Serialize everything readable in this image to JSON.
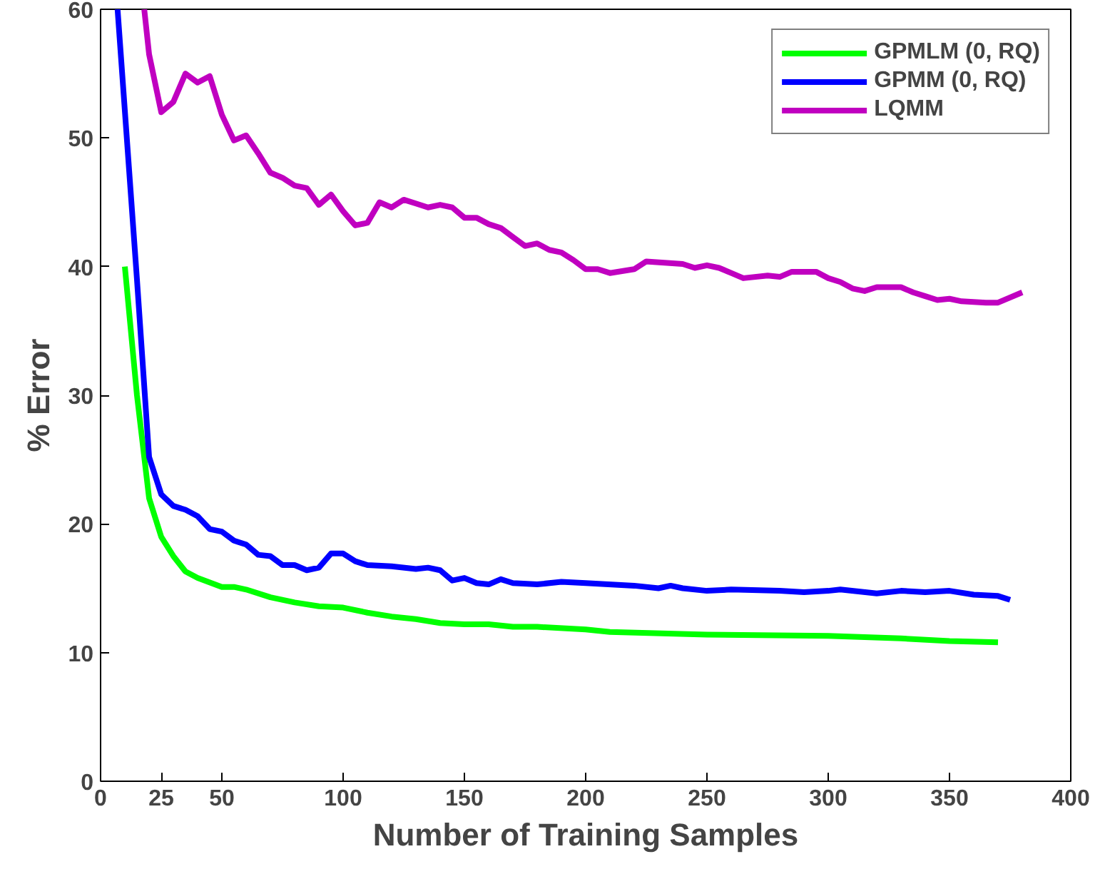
{
  "chart_data": {
    "type": "line",
    "xlabel": "Number of Training Samples",
    "ylabel": "% Error",
    "xlim": [
      0,
      400
    ],
    "ylim": [
      0,
      60
    ],
    "xticks": [
      0,
      25,
      50,
      100,
      150,
      200,
      250,
      300,
      350,
      400
    ],
    "yticks": [
      0,
      10,
      20,
      30,
      40,
      50,
      60
    ],
    "grid": false,
    "legend": "top right",
    "marker": "none",
    "line_style": "solid",
    "series": [
      {
        "name": "GPMLM (0, RQ)",
        "color": "#00ff00",
        "x": [
          10,
          15,
          20,
          25,
          30,
          35,
          40,
          50,
          55,
          60,
          70,
          80,
          90,
          100,
          110,
          120,
          130,
          140,
          150,
          160,
          170,
          180,
          200,
          210,
          250,
          300,
          330,
          350,
          370
        ],
        "values": [
          40,
          30,
          22,
          19,
          17.5,
          16.3,
          15.8,
          15.1,
          15.1,
          14.9,
          14.3,
          13.9,
          13.6,
          13.5,
          13.1,
          12.8,
          12.6,
          12.3,
          12.2,
          12.2,
          12.0,
          12.0,
          11.8,
          11.6,
          11.4,
          11.3,
          11.1,
          10.9,
          10.8
        ]
      },
      {
        "name": "GPMM (0, RQ)",
        "color": "#0000ff",
        "x": [
          7,
          15,
          20,
          25,
          30,
          35,
          40,
          45,
          50,
          55,
          60,
          65,
          70,
          75,
          80,
          85,
          90,
          95,
          100,
          105,
          110,
          120,
          130,
          135,
          140,
          145,
          150,
          155,
          160,
          165,
          170,
          180,
          190,
          200,
          220,
          230,
          235,
          240,
          250,
          260,
          280,
          290,
          300,
          305,
          320,
          330,
          340,
          350,
          360,
          370,
          375
        ],
        "values": [
          60,
          39,
          25.2,
          22.3,
          21.4,
          21.1,
          20.6,
          19.6,
          19.4,
          18.7,
          18.4,
          17.6,
          17.5,
          16.8,
          16.8,
          16.4,
          16.6,
          17.7,
          17.7,
          17.1,
          16.8,
          16.7,
          16.5,
          16.6,
          16.4,
          15.6,
          15.8,
          15.4,
          15.3,
          15.7,
          15.4,
          15.3,
          15.5,
          15.4,
          15.2,
          15.0,
          15.2,
          15.0,
          14.8,
          14.9,
          14.8,
          14.7,
          14.8,
          14.9,
          14.6,
          14.8,
          14.7,
          14.8,
          14.5,
          14.4,
          14.1
        ]
      },
      {
        "name": "LQMM",
        "color": "#c000c0",
        "x": [
          18,
          20,
          25,
          30,
          35,
          40,
          45,
          50,
          55,
          60,
          65,
          70,
          75,
          80,
          85,
          90,
          95,
          100,
          105,
          110,
          115,
          120,
          125,
          130,
          135,
          140,
          145,
          150,
          155,
          160,
          165,
          170,
          175,
          180,
          185,
          190,
          195,
          200,
          205,
          210,
          220,
          225,
          240,
          245,
          250,
          255,
          260,
          265,
          275,
          280,
          285,
          295,
          300,
          305,
          310,
          315,
          320,
          330,
          335,
          340,
          345,
          350,
          355,
          365,
          370,
          380
        ],
        "values": [
          60,
          56.5,
          52,
          52.8,
          55,
          54.3,
          54.8,
          51.8,
          49.8,
          50.2,
          48.8,
          47.3,
          46.9,
          46.3,
          46.1,
          44.8,
          45.6,
          44.3,
          43.2,
          43.4,
          45.0,
          44.6,
          45.2,
          44.9,
          44.6,
          44.8,
          44.6,
          43.8,
          43.8,
          43.3,
          43.0,
          42.3,
          41.6,
          41.8,
          41.3,
          41.1,
          40.5,
          39.8,
          39.8,
          39.5,
          39.8,
          40.4,
          40.2,
          39.9,
          40.1,
          39.9,
          39.5,
          39.1,
          39.3,
          39.2,
          39.6,
          39.6,
          39.1,
          38.8,
          38.3,
          38.1,
          38.4,
          38.4,
          38.0,
          37.7,
          37.4,
          37.5,
          37.3,
          37.2,
          37.2,
          38.0
        ]
      }
    ]
  }
}
